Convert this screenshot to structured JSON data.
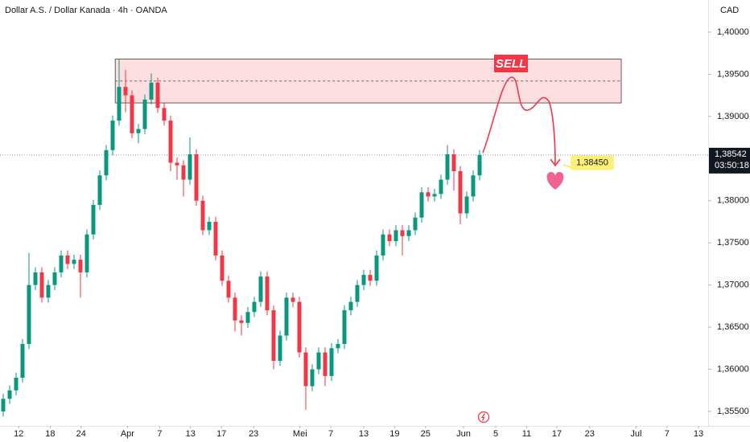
{
  "chart_data": {
    "type": "candlestick",
    "title": "Dollar A.S. / Dollar Kanada · 4h · OANDA",
    "currency": "CAD",
    "up_color": "#089981",
    "down_color": "#f23645",
    "xlim": [
      -0.5,
      109.5
    ],
    "ylim": [
      1.35328,
      1.40381
    ],
    "xticks": [
      {
        "value": 2.4,
        "label": "12"
      },
      {
        "value": 7.3,
        "label": "18"
      },
      {
        "value": 12.1,
        "label": "24"
      },
      {
        "value": 19.3,
        "label": "Apr"
      },
      {
        "value": 24.3,
        "label": "7"
      },
      {
        "value": 29.1,
        "label": "13"
      },
      {
        "value": 33.9,
        "label": "17"
      },
      {
        "value": 38.9,
        "label": "23"
      },
      {
        "value": 46.1,
        "label": "Mei"
      },
      {
        "value": 50.9,
        "label": "7"
      },
      {
        "value": 56,
        "label": "13"
      },
      {
        "value": 60.8,
        "label": "19"
      },
      {
        "value": 65.6,
        "label": "25"
      },
      {
        "value": 71.5,
        "label": "Jun"
      },
      {
        "value": 76.5,
        "label": "5"
      },
      {
        "value": 81.3,
        "label": "11"
      },
      {
        "value": 86,
        "label": "17"
      },
      {
        "value": 91.1,
        "label": "23"
      },
      {
        "value": 98.3,
        "label": "Jul"
      },
      {
        "value": 103.1,
        "label": "7"
      },
      {
        "value": 108,
        "label": "13"
      }
    ],
    "yticks": [
      {
        "value": 1.4,
        "label": "1,40000"
      },
      {
        "value": 1.395,
        "label": "1,39500"
      },
      {
        "value": 1.39,
        "label": "1,39000"
      },
      {
        "value": 1.38,
        "label": "1,38000"
      },
      {
        "value": 1.375,
        "label": "1,37500"
      },
      {
        "value": 1.37,
        "label": "1,37000"
      },
      {
        "value": 1.365,
        "label": "1,36500"
      },
      {
        "value": 1.36,
        "label": "1,36000"
      },
      {
        "value": 1.355,
        "label": "1,35500"
      }
    ],
    "open": [
      1.355,
      1.3565,
      1.3575,
      1.359,
      1.363,
      1.37,
      1.3715,
      1.3685,
      1.37,
      1.3715,
      1.3735,
      1.3725,
      1.373,
      1.3715,
      1.376,
      1.3795,
      1.383,
      1.386,
      1.3895,
      1.3935,
      1.3925,
      1.388,
      1.3885,
      1.392,
      1.394,
      1.391,
      1.3895,
      1.3845,
      1.3842,
      1.3825,
      1.3855,
      1.38,
      1.3765,
      1.3775,
      1.3735,
      1.3705,
      1.3685,
      1.3658,
      1.3655,
      1.3668,
      1.368,
      1.371,
      1.367,
      1.361,
      1.364,
      1.3685,
      1.368,
      1.362,
      1.358,
      1.36,
      1.362,
      1.3592,
      1.3625,
      1.363,
      1.367,
      1.368,
      1.37,
      1.3712,
      1.3705,
      1.3735,
      1.376,
      1.3752,
      1.3765,
      1.3758,
      1.3765,
      1.378,
      1.381,
      1.3805,
      1.3808,
      1.3825,
      1.3855,
      1.3835,
      1.3785,
      1.3805,
      1.383
    ],
    "high": [
      1.3571,
      1.3581,
      1.3596,
      1.3636,
      1.3738,
      1.3721,
      1.3721,
      1.3706,
      1.3721,
      1.3741,
      1.3741,
      1.3736,
      1.3736,
      1.3766,
      1.3801,
      1.3836,
      1.3866,
      1.3901,
      1.3968,
      1.3955,
      1.3931,
      1.3891,
      1.3926,
      1.3951,
      1.3946,
      1.3916,
      1.3901,
      1.3851,
      1.3848,
      1.3875,
      1.3861,
      1.3806,
      1.3781,
      1.3781,
      1.3741,
      1.3711,
      1.3691,
      1.3664,
      1.3674,
      1.3686,
      1.3716,
      1.3716,
      1.3676,
      1.3646,
      1.3691,
      1.3691,
      1.3686,
      1.3626,
      1.3606,
      1.3626,
      1.3626,
      1.3631,
      1.3636,
      1.3676,
      1.3686,
      1.3706,
      1.3718,
      1.3718,
      1.3741,
      1.3766,
      1.3766,
      1.3771,
      1.3771,
      1.3771,
      1.3786,
      1.3816,
      1.3816,
      1.3814,
      1.3831,
      1.3866,
      1.3861,
      1.3841,
      1.3811,
      1.3836,
      1.386
    ],
    "low": [
      1.3544,
      1.3559,
      1.3569,
      1.3584,
      1.3624,
      1.3694,
      1.3679,
      1.3679,
      1.3694,
      1.3709,
      1.3719,
      1.3719,
      1.3685,
      1.3709,
      1.3754,
      1.3789,
      1.3824,
      1.3854,
      1.3889,
      1.3905,
      1.3874,
      1.3868,
      1.3879,
      1.3914,
      1.3904,
      1.3889,
      1.3835,
      1.3825,
      1.3805,
      1.3819,
      1.3794,
      1.3759,
      1.3759,
      1.3729,
      1.3699,
      1.3679,
      1.3645,
      1.364,
      1.3649,
      1.3662,
      1.3674,
      1.3664,
      1.36,
      1.3604,
      1.3634,
      1.3674,
      1.3614,
      1.3552,
      1.3574,
      1.3594,
      1.358,
      1.3586,
      1.3619,
      1.3624,
      1.3664,
      1.3674,
      1.3694,
      1.3699,
      1.3699,
      1.3729,
      1.3746,
      1.3746,
      1.3735,
      1.3752,
      1.3759,
      1.3774,
      1.3799,
      1.3799,
      1.3802,
      1.3819,
      1.3812,
      1.3772,
      1.3779,
      1.3799,
      1.3824
    ],
    "close": [
      1.3565,
      1.3575,
      1.359,
      1.363,
      1.37,
      1.3715,
      1.3685,
      1.37,
      1.3715,
      1.3735,
      1.3725,
      1.373,
      1.3715,
      1.376,
      1.3795,
      1.383,
      1.386,
      1.3895,
      1.3935,
      1.3925,
      1.388,
      1.3885,
      1.392,
      1.394,
      1.391,
      1.3895,
      1.3845,
      1.3842,
      1.3825,
      1.3855,
      1.38,
      1.3765,
      1.3775,
      1.3735,
      1.3705,
      1.3685,
      1.3658,
      1.3655,
      1.3668,
      1.368,
      1.371,
      1.367,
      1.361,
      1.364,
      1.3685,
      1.368,
      1.362,
      1.358,
      1.36,
      1.362,
      1.3592,
      1.3625,
      1.363,
      1.367,
      1.368,
      1.37,
      1.3712,
      1.3705,
      1.3735,
      1.376,
      1.3752,
      1.3765,
      1.3758,
      1.3765,
      1.378,
      1.381,
      1.3805,
      1.3808,
      1.3825,
      1.3855,
      1.3835,
      1.3785,
      1.3805,
      1.383,
      1.38542
    ],
    "last_price": {
      "value": 1.38542,
      "label": "1,38542"
    },
    "countdown": "03:50:18",
    "zone": {
      "x": [
        17.4,
        96
      ],
      "top": 1.3968,
      "bottom": 1.3916,
      "mid": 1.3942
    },
    "sell_label": "SELL",
    "target": {
      "value": 1.3845,
      "label": "1,38450"
    }
  }
}
